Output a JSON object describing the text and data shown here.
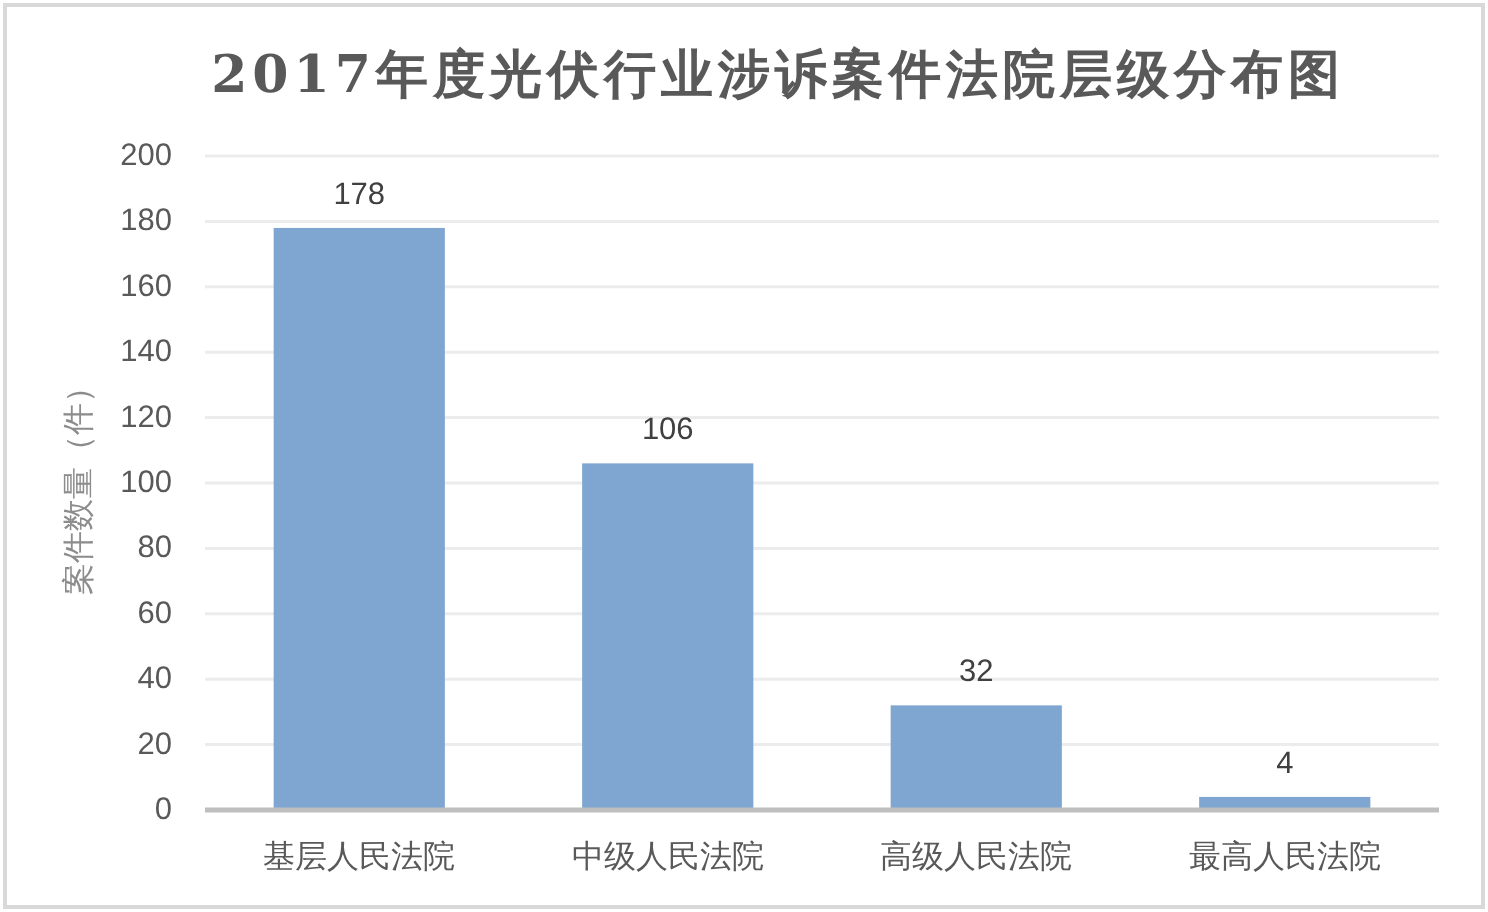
{
  "chart_data": {
    "type": "bar",
    "title": "2017年度光伏行业涉诉案件法院层级分布图",
    "ylabel": "案件数量（件）",
    "categories": [
      "基层人民法院",
      "中级人民法院",
      "高级人民法院",
      "最高人民法院"
    ],
    "values": [
      178,
      106,
      32,
      4
    ],
    "color": "#7fa6d1",
    "ylim": [
      0,
      200
    ],
    "yticks": [
      0,
      20,
      40,
      60,
      80,
      100,
      120,
      140,
      160,
      180,
      200
    ],
    "grid": "y",
    "data_labels": true
  }
}
